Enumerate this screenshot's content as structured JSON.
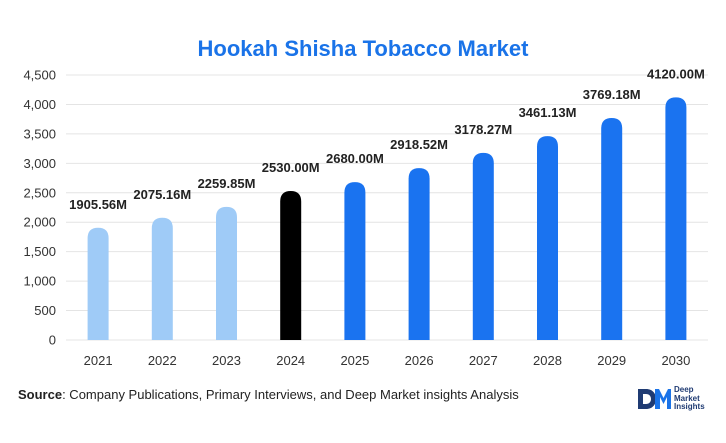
{
  "colors": {
    "title": "#1a73e8",
    "historic": "#9fcbf7",
    "current": "#000000",
    "forecast": "#1a73f0",
    "grid": "#e4e4e4",
    "brand": "#1f3b73",
    "brand_accent": "#1a73e8"
  },
  "chart_data": {
    "type": "bar",
    "title": "Hookah Shisha Tobacco Market",
    "categories": [
      "2021",
      "2022",
      "2023",
      "2024",
      "2025",
      "2026",
      "2027",
      "2028",
      "2029",
      "2030"
    ],
    "values": [
      1905.56,
      2075.16,
      2259.85,
      2530.0,
      2680.0,
      2918.52,
      3178.27,
      3461.13,
      3769.18,
      4120.0
    ],
    "data_labels": [
      "1905.56M",
      "2075.16M",
      "2259.85M",
      "2530.00M",
      "2680.00M",
      "2918.52M",
      "3178.27M",
      "3461.13M",
      "3769.18M",
      "4120.00M"
    ],
    "bar_color_keys": [
      "historic",
      "historic",
      "historic",
      "current",
      "forecast",
      "forecast",
      "forecast",
      "forecast",
      "forecast",
      "forecast"
    ],
    "ylim": [
      0,
      4500
    ],
    "y_ticks": [
      0,
      500,
      1000,
      1500,
      2000,
      2500,
      3000,
      3500,
      4000,
      4500
    ],
    "y_tick_labels": [
      "0",
      "500",
      "1,000",
      "1,500",
      "2,000",
      "2,500",
      "3,000",
      "3,500",
      "4,000",
      "4,500"
    ],
    "grid": "horizontal",
    "xlabel": "",
    "ylabel": ""
  },
  "footer": {
    "source_label": "Source",
    "source_text": ": Company Publications, Primary Interviews, and Deep Market insights Analysis"
  },
  "brand": {
    "mark": "DM",
    "line1": "Deep",
    "line2": "Market",
    "line3": "Insights"
  }
}
